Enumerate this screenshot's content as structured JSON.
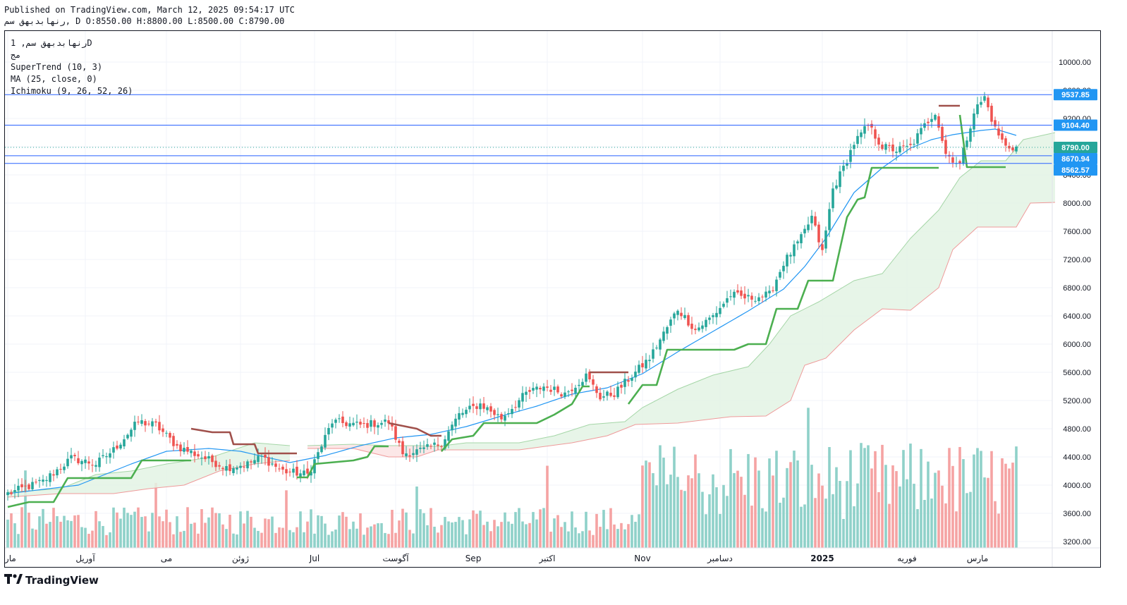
{
  "header": {
    "published": "Published on TradingView.com, March 12, 2025 09:54:17 UTC",
    "ohlc_line": "رنهابدبهق سم, D O:8550.00 H:8800.00 L:8500.00 C:8790.00"
  },
  "legend": {
    "symbol": "رنهابدبهق سم, 1D",
    "subtitle": "مج",
    "indicators": [
      "SuperTrend (10, 3)",
      "MA (25, close, 0)",
      "Ichimoku (9, 26, 52, 26)"
    ]
  },
  "footer": {
    "brand": "TradingView",
    "logo_icon": "tradingview-logo-icon"
  },
  "colors": {
    "up": "#26a69a",
    "down": "#ef5350",
    "up_vol": "#8fd1c9",
    "down_vol": "#f5a3a3",
    "supertrend_up": "#4caf50",
    "supertrend_down": "#a0504b",
    "ma": "#2196f3",
    "hline": "#2962ff",
    "price_label": "#2196f3",
    "last_label": "#26a69a",
    "cloud_bull": "#e3f3e4",
    "cloud_bear": "#fbe3e3"
  },
  "chart_data": {
    "type": "candlestick",
    "ylim": [
      3100,
      10450
    ],
    "yticks": [
      3200,
      3600,
      4000,
      4400,
      4800,
      5200,
      5600,
      6000,
      6400,
      6800,
      7200,
      7600,
      8000,
      8400,
      8800,
      9200,
      9600,
      10000
    ],
    "x_labels": [
      {
        "label": "مارچ",
        "idx": 0
      },
      {
        "label": "آوریل",
        "idx": 22
      },
      {
        "label": "می",
        "idx": 45
      },
      {
        "label": "ژوئن",
        "idx": 66
      },
      {
        "label": "Jul",
        "idx": 87
      },
      {
        "label": "آگوست",
        "idx": 110
      },
      {
        "label": "Sep",
        "idx": 132
      },
      {
        "label": "اکتبر",
        "idx": 153
      },
      {
        "label": "Nov",
        "idx": 180
      },
      {
        "label": "دسامبر",
        "idx": 202
      },
      {
        "label": "2025",
        "idx": 231
      },
      {
        "label": "فوریه",
        "idx": 255
      },
      {
        "label": "مارس",
        "idx": 275
      }
    ],
    "horizontal_lines": [
      {
        "value": 9537.85,
        "label": "9537.85"
      },
      {
        "value": 9104.4,
        "label": "9104.40"
      },
      {
        "value": 8670.94,
        "label": "8670.94"
      },
      {
        "value": 8562.57,
        "label": "8562.57"
      }
    ],
    "last_price": {
      "value": 8790.0,
      "label": "8790.00"
    },
    "close_anchors": [
      [
        0,
        3880
      ],
      [
        10,
        4050
      ],
      [
        18,
        4380
      ],
      [
        25,
        4300
      ],
      [
        30,
        4500
      ],
      [
        37,
        4900
      ],
      [
        42,
        4850
      ],
      [
        48,
        4550
      ],
      [
        55,
        4400
      ],
      [
        62,
        4250
      ],
      [
        68,
        4300
      ],
      [
        72,
        4400
      ],
      [
        78,
        4200
      ],
      [
        85,
        4150
      ],
      [
        88,
        4450
      ],
      [
        92,
        4900
      ],
      [
        100,
        4850
      ],
      [
        108,
        4900
      ],
      [
        112,
        4450
      ],
      [
        118,
        4500
      ],
      [
        123,
        4600
      ],
      [
        128,
        5000
      ],
      [
        134,
        5150
      ],
      [
        140,
        4950
      ],
      [
        147,
        5300
      ],
      [
        152,
        5400
      ],
      [
        158,
        5300
      ],
      [
        164,
        5550
      ],
      [
        168,
        5250
      ],
      [
        172,
        5300
      ],
      [
        178,
        5600
      ],
      [
        182,
        5800
      ],
      [
        186,
        6150
      ],
      [
        190,
        6500
      ],
      [
        195,
        6200
      ],
      [
        200,
        6400
      ],
      [
        205,
        6700
      ],
      [
        210,
        6650
      ],
      [
        216,
        6700
      ],
      [
        220,
        7150
      ],
      [
        225,
        7500
      ],
      [
        228,
        7800
      ],
      [
        231,
        7300
      ],
      [
        234,
        8200
      ],
      [
        237,
        8500
      ],
      [
        240,
        8850
      ],
      [
        244,
        9100
      ],
      [
        248,
        8800
      ],
      [
        252,
        8750
      ],
      [
        256,
        8800
      ],
      [
        260,
        9100
      ],
      [
        263,
        9300
      ],
      [
        266,
        8700
      ],
      [
        270,
        8550
      ],
      [
        274,
        9300
      ],
      [
        277,
        9500
      ],
      [
        280,
        9050
      ],
      [
        283,
        8800
      ],
      [
        286,
        8790
      ]
    ],
    "ma_anchors": [
      [
        0,
        3880
      ],
      [
        20,
        4000
      ],
      [
        35,
        4300
      ],
      [
        45,
        4480
      ],
      [
        57,
        4520
      ],
      [
        66,
        4480
      ],
      [
        80,
        4320
      ],
      [
        90,
        4420
      ],
      [
        100,
        4560
      ],
      [
        110,
        4670
      ],
      [
        120,
        4720
      ],
      [
        130,
        4830
      ],
      [
        140,
        4980
      ],
      [
        150,
        5120
      ],
      [
        160,
        5290
      ],
      [
        170,
        5380
      ],
      [
        180,
        5580
      ],
      [
        190,
        5890
      ],
      [
        200,
        6180
      ],
      [
        210,
        6470
      ],
      [
        220,
        6780
      ],
      [
        226,
        7100
      ],
      [
        232,
        7500
      ],
      [
        240,
        8150
      ],
      [
        248,
        8500
      ],
      [
        256,
        8780
      ],
      [
        262,
        8900
      ],
      [
        268,
        8970
      ],
      [
        276,
        9030
      ],
      [
        280,
        9050
      ],
      [
        286,
        8960
      ]
    ],
    "supertrend": [
      {
        "side": "up",
        "points": [
          [
            0,
            3690
          ],
          [
            6,
            3760
          ],
          [
            13,
            3760
          ],
          [
            17,
            4100
          ],
          [
            35,
            4100
          ],
          [
            38,
            4350
          ],
          [
            52,
            4350
          ]
        ]
      },
      {
        "side": "down",
        "points": [
          [
            52,
            4800
          ],
          [
            58,
            4750
          ],
          [
            63,
            4750
          ],
          [
            64,
            4580
          ],
          [
            70,
            4580
          ],
          [
            71,
            4450
          ],
          [
            82,
            4450
          ]
        ]
      },
      {
        "side": "up",
        "points": [
          [
            82,
            4110
          ],
          [
            85,
            4110
          ],
          [
            87,
            4300
          ],
          [
            98,
            4350
          ],
          [
            102,
            4400
          ],
          [
            104,
            4550
          ],
          [
            108,
            4550
          ]
        ]
      },
      {
        "side": "down",
        "points": [
          [
            108,
            4880
          ],
          [
            116,
            4800
          ],
          [
            120,
            4700
          ],
          [
            123,
            4700
          ]
        ]
      },
      {
        "side": "up",
        "points": [
          [
            123,
            4480
          ],
          [
            126,
            4650
          ],
          [
            132,
            4700
          ],
          [
            135,
            4880
          ],
          [
            150,
            4880
          ],
          [
            155,
            5000
          ],
          [
            160,
            5150
          ],
          [
            163,
            5400
          ],
          [
            165,
            5400
          ]
        ]
      },
      {
        "side": "down",
        "points": [
          [
            165,
            5600
          ],
          [
            176,
            5600
          ]
        ]
      },
      {
        "side": "up",
        "points": [
          [
            176,
            5150
          ],
          [
            180,
            5420
          ],
          [
            184,
            5420
          ],
          [
            187,
            5920
          ],
          [
            206,
            5920
          ],
          [
            210,
            6000
          ],
          [
            215,
            6000
          ],
          [
            218,
            6500
          ],
          [
            224,
            6500
          ],
          [
            227,
            6900
          ],
          [
            234,
            6900
          ],
          [
            238,
            7800
          ],
          [
            241,
            8050
          ],
          [
            243,
            8080
          ],
          [
            245,
            8500
          ],
          [
            264,
            8500
          ]
        ]
      },
      {
        "side": "down",
        "points": [
          [
            264,
            9380
          ],
          [
            270,
            9380
          ]
        ]
      },
      {
        "side": "up",
        "points": [
          [
            270,
            9250
          ],
          [
            272,
            8510
          ],
          [
            283,
            8510
          ]
        ]
      }
    ],
    "cloud": [
      {
        "kind": "bull",
        "lower": [
          [
            0,
            3830
          ],
          [
            15,
            3880
          ],
          [
            30,
            3880
          ],
          [
            40,
            3950
          ],
          [
            50,
            4000
          ],
          [
            60,
            4200
          ],
          [
            70,
            4300
          ],
          [
            80,
            4350
          ]
        ],
        "upper": [
          [
            0,
            3900
          ],
          [
            15,
            3950
          ],
          [
            25,
            4150
          ],
          [
            35,
            4200
          ],
          [
            45,
            4300
          ],
          [
            58,
            4400
          ],
          [
            70,
            4600
          ],
          [
            80,
            4560
          ]
        ]
      },
      {
        "kind": "bear",
        "lower": [
          [
            85,
            4520
          ],
          [
            98,
            4520
          ],
          [
            108,
            4400
          ],
          [
            116,
            4400
          ],
          [
            122,
            4500
          ]
        ],
        "upper": [
          [
            85,
            4560
          ],
          [
            98,
            4580
          ],
          [
            108,
            4560
          ],
          [
            116,
            4560
          ],
          [
            122,
            4550
          ]
        ]
      },
      {
        "kind": "bull",
        "lower": [
          [
            122,
            4500
          ],
          [
            130,
            4500
          ],
          [
            145,
            4500
          ],
          [
            160,
            4600
          ],
          [
            170,
            4700
          ],
          [
            178,
            4860
          ],
          [
            190,
            4880
          ],
          [
            205,
            4970
          ],
          [
            215,
            4980
          ],
          [
            222,
            5200
          ],
          [
            226,
            5700
          ],
          [
            232,
            5800
          ],
          [
            240,
            6200
          ],
          [
            248,
            6500
          ],
          [
            256,
            6480
          ],
          [
            264,
            6800
          ],
          [
            268,
            7340
          ],
          [
            275,
            7660
          ],
          [
            286,
            7660
          ],
          [
            290,
            8000
          ],
          [
            297,
            8010
          ]
        ],
        "upper": [
          [
            122,
            4550
          ],
          [
            130,
            4600
          ],
          [
            145,
            4600
          ],
          [
            155,
            4700
          ],
          [
            165,
            4860
          ],
          [
            175,
            4900
          ],
          [
            180,
            5100
          ],
          [
            190,
            5360
          ],
          [
            200,
            5560
          ],
          [
            210,
            5680
          ],
          [
            216,
            6000
          ],
          [
            222,
            6400
          ],
          [
            230,
            6600
          ],
          [
            240,
            6900
          ],
          [
            248,
            7000
          ],
          [
            256,
            7500
          ],
          [
            264,
            7900
          ],
          [
            270,
            8360
          ],
          [
            276,
            8600
          ],
          [
            283,
            8600
          ],
          [
            288,
            8900
          ],
          [
            297,
            9000
          ]
        ]
      }
    ]
  }
}
